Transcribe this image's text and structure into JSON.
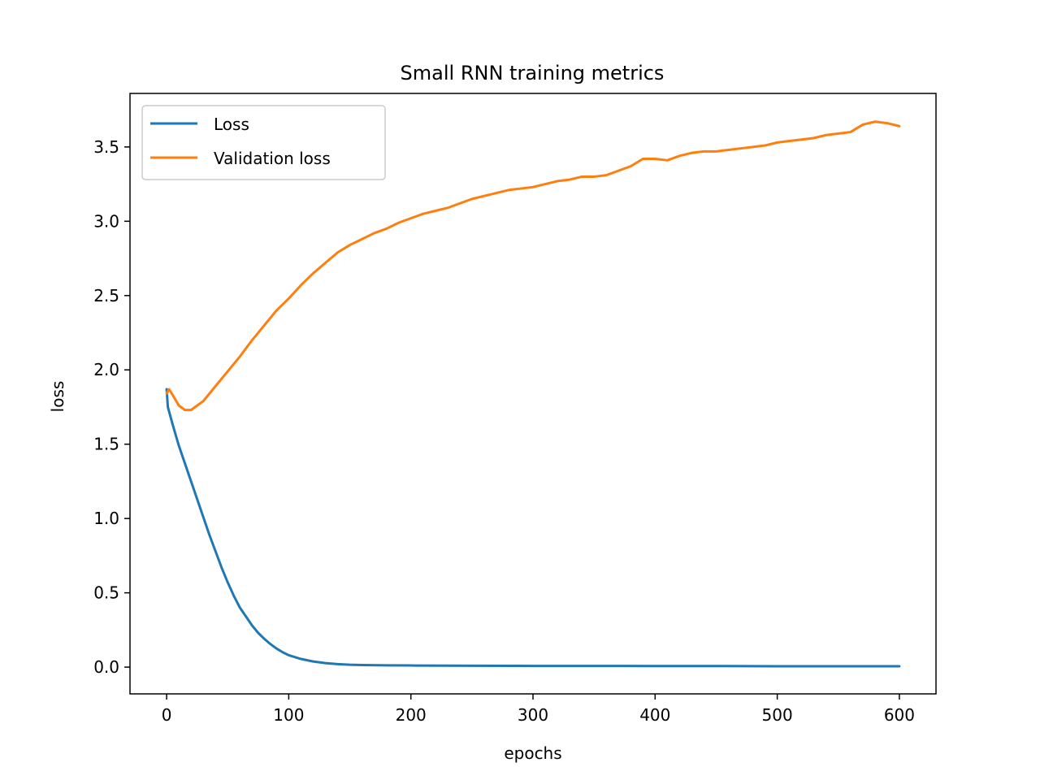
{
  "chart_data": {
    "type": "line",
    "title": "Small RNN training metrics",
    "xlabel": "epochs",
    "ylabel": "loss",
    "xlim": [
      -30,
      630
    ],
    "ylim": [
      -0.18,
      3.86
    ],
    "xticks": [
      0,
      100,
      200,
      300,
      400,
      500,
      600
    ],
    "yticks": [
      0.0,
      0.5,
      1.0,
      1.5,
      2.0,
      2.5,
      3.0,
      3.5
    ],
    "xtick_labels": [
      "0",
      "100",
      "200",
      "300",
      "400",
      "500",
      "600"
    ],
    "ytick_labels": [
      "0.0",
      "0.5",
      "1.0",
      "1.5",
      "2.0",
      "2.5",
      "3.0",
      "3.5"
    ],
    "grid": false,
    "legend_position": "top-left",
    "series": [
      {
        "name": "Loss",
        "color": "#1f77b4",
        "x": [
          0,
          1,
          2,
          5,
          10,
          15,
          20,
          25,
          30,
          35,
          40,
          45,
          50,
          55,
          60,
          65,
          70,
          75,
          80,
          85,
          90,
          95,
          100,
          110,
          120,
          130,
          140,
          150,
          160,
          180,
          200,
          250,
          300,
          350,
          400,
          450,
          500,
          550,
          600
        ],
        "values": [
          1.87,
          1.75,
          1.72,
          1.63,
          1.49,
          1.37,
          1.25,
          1.13,
          1.01,
          0.89,
          0.78,
          0.67,
          0.57,
          0.48,
          0.4,
          0.34,
          0.28,
          0.23,
          0.19,
          0.155,
          0.125,
          0.1,
          0.08,
          0.055,
          0.038,
          0.027,
          0.02,
          0.016,
          0.014,
          0.012,
          0.011,
          0.009,
          0.008,
          0.008,
          0.007,
          0.007,
          0.006,
          0.006,
          0.006
        ]
      },
      {
        "name": "Validation loss",
        "color": "#ff7f0e",
        "x": [
          0,
          2,
          5,
          10,
          15,
          20,
          25,
          30,
          35,
          40,
          50,
          60,
          70,
          80,
          90,
          100,
          110,
          120,
          130,
          140,
          150,
          160,
          170,
          180,
          190,
          200,
          210,
          220,
          230,
          240,
          250,
          260,
          270,
          280,
          290,
          300,
          310,
          320,
          330,
          340,
          350,
          360,
          370,
          380,
          390,
          400,
          410,
          420,
          430,
          440,
          450,
          460,
          470,
          480,
          490,
          500,
          510,
          520,
          530,
          540,
          550,
          560,
          570,
          580,
          590,
          600
        ],
        "values": [
          1.84,
          1.87,
          1.83,
          1.76,
          1.73,
          1.73,
          1.76,
          1.79,
          1.84,
          1.89,
          1.99,
          2.09,
          2.2,
          2.3,
          2.4,
          2.48,
          2.57,
          2.65,
          2.72,
          2.79,
          2.84,
          2.88,
          2.92,
          2.95,
          2.99,
          3.02,
          3.05,
          3.07,
          3.09,
          3.12,
          3.15,
          3.17,
          3.19,
          3.21,
          3.22,
          3.23,
          3.25,
          3.27,
          3.28,
          3.3,
          3.3,
          3.31,
          3.34,
          3.37,
          3.42,
          3.42,
          3.41,
          3.44,
          3.46,
          3.47,
          3.47,
          3.48,
          3.49,
          3.5,
          3.51,
          3.53,
          3.54,
          3.55,
          3.56,
          3.58,
          3.59,
          3.6,
          3.65,
          3.67,
          3.66,
          3.64
        ]
      }
    ]
  }
}
